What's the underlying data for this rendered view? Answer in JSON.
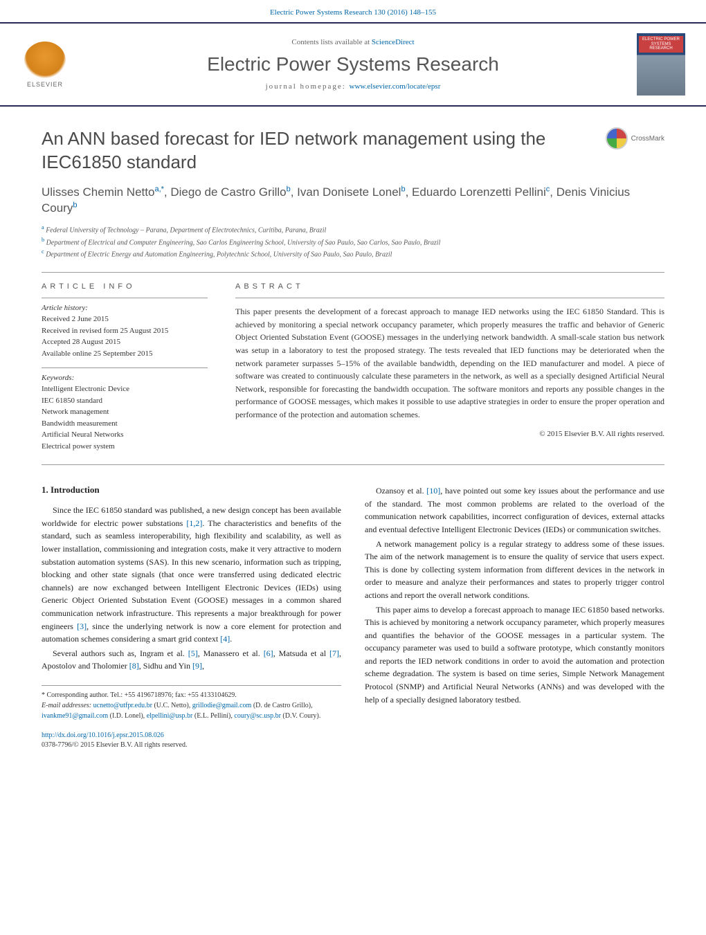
{
  "header": {
    "citation": "Electric Power Systems Research 130 (2016) 148–155",
    "contents_prefix": "Contents lists available at ",
    "contents_link": "ScienceDirect",
    "journal_name": "Electric Power Systems Research",
    "homepage_prefix": "journal homepage: ",
    "homepage_link": "www.elsevier.com/locate/epsr",
    "publisher": "ELSEVIER",
    "cover_label": "ELECTRIC POWER SYSTEMS RESEARCH"
  },
  "crossmark": {
    "label": "CrossMark"
  },
  "paper": {
    "title": "An ANN based forecast for IED network management using the IEC61850 standard",
    "authors_html": "Ulisses Chemin Netto<sup>a,*</sup>, Diego de Castro Grillo<sup>b</sup>, Ivan Donisete Lonel<sup>b</sup>, Eduardo Lorenzetti Pellini<sup>c</sup>, Denis Vinicius Coury<sup>b</sup>",
    "affiliations": [
      "Federal University of Technology – Parana, Department of Electrotechnics, Curitiba, Parana, Brazil",
      "Department of Electrical and Computer Engineering, Sao Carlos Engineering School, University of Sao Paulo, Sao Carlos, Sao Paulo, Brazil",
      "Department of Electric Energy and Automation Engineering, Polytechnic School, University of Sao Paulo, Sao Paulo, Brazil"
    ],
    "aff_markers": [
      "a",
      "b",
      "c"
    ]
  },
  "article_info": {
    "heading": "ARTICLE INFO",
    "history_head": "Article history:",
    "history": [
      "Received 2 June 2015",
      "Received in revised form 25 August 2015",
      "Accepted 28 August 2015",
      "Available online 25 September 2015"
    ],
    "keywords_head": "Keywords:",
    "keywords": [
      "Intelligent Electronic Device",
      "IEC 61850 standard",
      "Network management",
      "Bandwidth measurement",
      "Artificial Neural Networks",
      "Electrical power system"
    ]
  },
  "abstract": {
    "heading": "ABSTRACT",
    "text": "This paper presents the development of a forecast approach to manage IED networks using the IEC 61850 Standard. This is achieved by monitoring a special network occupancy parameter, which properly measures the traffic and behavior of Generic Object Oriented Substation Event (GOOSE) messages in the underlying network bandwidth. A small-scale station bus network was setup in a laboratory to test the proposed strategy. The tests revealed that IED functions may be deteriorated when the network parameter surpasses 5–15% of the available bandwidth, depending on the IED manufacturer and model. A piece of software was created to continuously calculate these parameters in the network, as well as a specially designed Artificial Neural Network, responsible for forecasting the bandwidth occupation. The software monitors and reports any possible changes in the performance of GOOSE messages, which makes it possible to use adaptive strategies in order to ensure the proper operation and performance of the protection and automation schemes.",
    "copyright": "© 2015 Elsevier B.V. All rights reserved."
  },
  "body": {
    "section_number": "1.",
    "section_title": "Introduction",
    "left_paras": [
      "Since the IEC 61850 standard was published, a new design concept has been available worldwide for electric power substations <span class=\"ref\">[1,2]</span>. The characteristics and benefits of the standard, such as seamless interoperability, high flexibility and scalability, as well as lower installation, commissioning and integration costs, make it very attractive to modern substation automation systems (SAS). In this new scenario, information such as tripping, blocking and other state signals (that once were transferred using dedicated electric channels) are now exchanged between Intelligent Electronic Devices (IEDs) using Generic Object Oriented Substation Event (GOOSE) messages in a common shared communication network infrastructure. This represents a major breakthrough for power engineers <span class=\"ref\">[3]</span>, since the underlying network is now a core element for protection and automation schemes considering a smart grid context <span class=\"ref\">[4]</span>.",
      "Several authors such as, Ingram et al. <span class=\"ref\">[5]</span>, Manassero et al. <span class=\"ref\">[6]</span>, Matsuda et al <span class=\"ref\">[7]</span>, Apostolov and Tholomier <span class=\"ref\">[8]</span>, Sidhu and Yin <span class=\"ref\">[9]</span>,"
    ],
    "right_paras": [
      "Ozansoy et al. <span class=\"ref\">[10]</span>, have pointed out some key issues about the performance and use of the standard. The most common problems are related to the overload of the communication network capabilities, incorrect configuration of devices, external attacks and eventual defective Intelligent Electronic Devices (IEDs) or communication switches.",
      "A network management policy is a regular strategy to address some of these issues. The aim of the network management is to ensure the quality of service that users expect. This is done by collecting system information from different devices in the network in order to measure and analyze their performances and states to properly trigger control actions and report the overall network conditions.",
      "This paper aims to develop a forecast approach to manage IEC 61850 based networks. This is achieved by monitoring a network occupancy parameter, which properly measures and quantifies the behavior of the GOOSE messages in a particular system. The occupancy parameter was used to build a software prototype, which constantly monitors and reports the IED network conditions in order to avoid the automation and protection scheme degradation. The system is based on time series, Simple Network Management Protocol (SNMP) and Artificial Neural Networks (ANNs) and was developed with the help of a specially designed laboratory testbed."
    ]
  },
  "footnotes": {
    "corresponding": "* Corresponding author. Tel.: +55 4196718976; fax: +55 4133104629.",
    "emails_label": "E-mail addresses:",
    "emails": [
      {
        "addr": "ucnetto@utfpr.edu.br",
        "who": "(U.C. Netto)"
      },
      {
        "addr": "grillodie@gmail.com",
        "who": "(D. de Castro Grillo)"
      },
      {
        "addr": "ivankme91@gmail.com",
        "who": "(I.D. Lonel)"
      },
      {
        "addr": "elpellini@usp.br",
        "who": "(E.L. Pellini)"
      },
      {
        "addr": "coury@sc.usp.br",
        "who": "(D.V. Coury)."
      }
    ]
  },
  "doi": {
    "link": "http://dx.doi.org/10.1016/j.epsr.2015.08.026",
    "issn_line": "0378-7796/© 2015 Elsevier B.V. All rights reserved."
  },
  "colors": {
    "link": "#0066aa",
    "rule": "#2a2a5a",
    "text": "#333333",
    "heading": "#4a4a4a"
  }
}
